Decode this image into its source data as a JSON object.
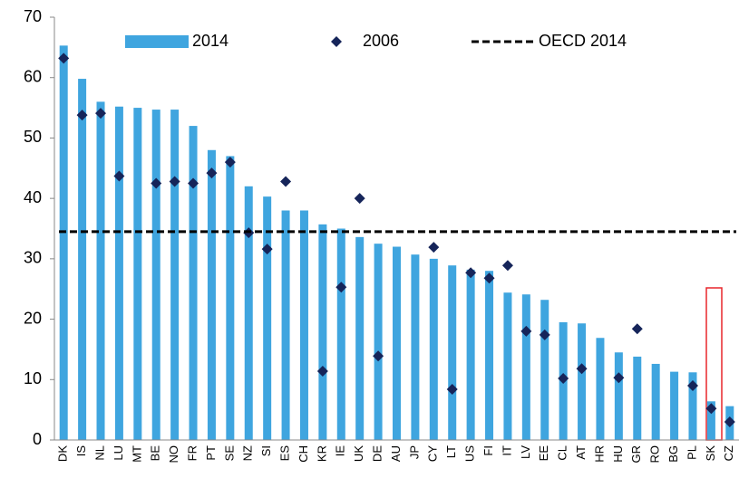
{
  "chart_data": {
    "type": "bar",
    "categories": [
      "DK",
      "IS",
      "NL",
      "LU",
      "MT",
      "BE",
      "NO",
      "FR",
      "PT",
      "SE",
      "NZ",
      "SI",
      "ES",
      "CH",
      "KR",
      "IE",
      "UK",
      "DE",
      "AU",
      "JP",
      "CY",
      "LT",
      "US",
      "FI",
      "IT",
      "LV",
      "EE",
      "CL",
      "AT",
      "HR",
      "HU",
      "GR",
      "RO",
      "BG",
      "PL",
      "SK",
      "CZ"
    ],
    "series": [
      {
        "name": "2014",
        "type": "bar",
        "color": "#3fa5df",
        "values": [
          65.3,
          59.8,
          56,
          55.2,
          55,
          54.7,
          54.7,
          52,
          48,
          47,
          42,
          40.3,
          38,
          38,
          35.7,
          35,
          33.6,
          32.5,
          32,
          30.7,
          30,
          28.9,
          28.2,
          28,
          24.4,
          24.1,
          23.2,
          19.5,
          19.3,
          16.9,
          14.5,
          13.8,
          12.6,
          11.3,
          11.2,
          6.4,
          5.6
        ]
      },
      {
        "name": "2006",
        "type": "scatter",
        "color": "#16255a",
        "values": [
          63.2,
          53.8,
          54.1,
          43.7,
          null,
          42.5,
          42.8,
          42.5,
          44.2,
          46,
          34.3,
          31.6,
          42.8,
          null,
          11.4,
          25.3,
          40,
          13.9,
          null,
          null,
          31.9,
          8.4,
          27.7,
          26.8,
          28.9,
          18,
          17.4,
          10.2,
          11.8,
          null,
          10.3,
          18.4,
          null,
          null,
          9,
          5.2,
          3
        ]
      },
      {
        "name": "OECD 2014",
        "type": "hline",
        "color": "#000000",
        "value": 34.5
      }
    ],
    "ylim": [
      0,
      70
    ],
    "yticks": [
      0,
      10,
      20,
      30,
      40,
      50,
      60,
      70
    ],
    "legend": "top"
  }
}
